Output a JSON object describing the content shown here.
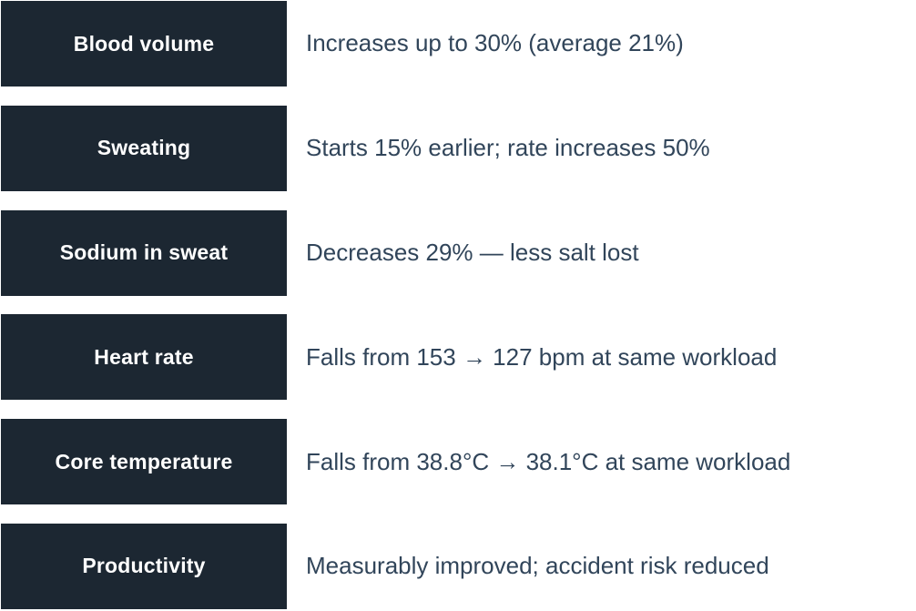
{
  "page": {
    "background": "#ffffff"
  },
  "colors": {
    "row_box_bg": "#1c2732",
    "row_label_text": "#ffffff",
    "row_description_text": "#31455a"
  },
  "rows": [
    {
      "label": "Blood volume",
      "description": "Increases up to 30% (average 21%)"
    },
    {
      "label": "Sweating",
      "description": "Starts 15% earlier; rate increases 50%"
    },
    {
      "label": "Sodium in sweat",
      "description": "Decreases 29% — less salt lost"
    },
    {
      "label": "Heart rate",
      "description": "Falls from 153 → 127 bpm at same workload"
    },
    {
      "label": "Core temperature",
      "description": "Falls from 38.8°C → 38.1°C at same workload"
    },
    {
      "label": "Productivity",
      "description": "Measurably improved; accident risk reduced"
    }
  ]
}
